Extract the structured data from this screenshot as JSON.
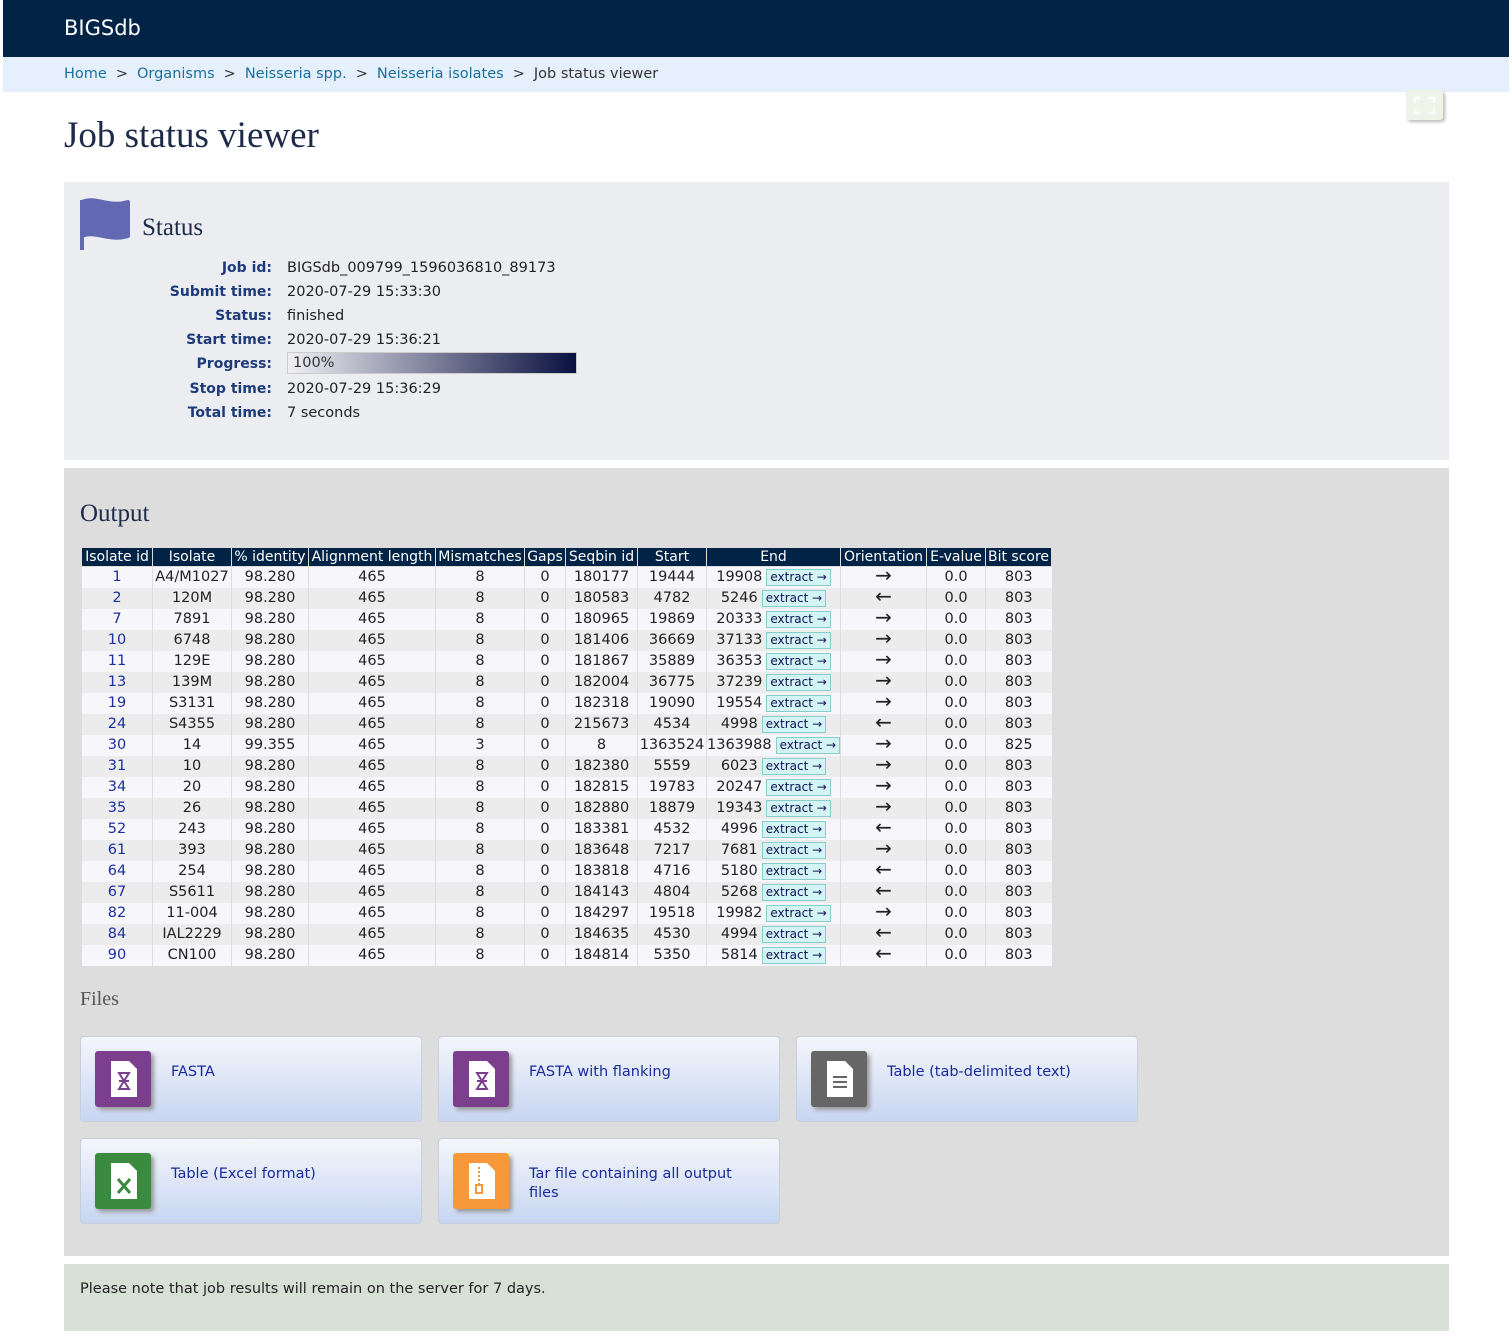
{
  "header": {
    "brand": "BIGSdb"
  },
  "breadcrumb": {
    "separator": ">",
    "items": [
      "Home",
      "Organisms",
      "Neisseria spp.",
      "Neisseria isolates",
      "Job status viewer"
    ]
  },
  "title": "Job status viewer",
  "status": {
    "heading": "Status",
    "fields": [
      {
        "label": "Job id:",
        "value": "BIGSdb_009799_1596036810_89173"
      },
      {
        "label": "Submit time:",
        "value": "2020-07-29 15:33:30"
      },
      {
        "label": "Status:",
        "value": "finished"
      },
      {
        "label": "Start time:",
        "value": "2020-07-29 15:36:21"
      }
    ],
    "progress": {
      "label": "Progress:",
      "value": 100,
      "value_label": "100%"
    },
    "fields_after": [
      {
        "label": "Stop time:",
        "value": "2020-07-29 15:36:29"
      },
      {
        "label": "Total time:",
        "value": "7 seconds"
      }
    ]
  },
  "output": {
    "heading": "Output",
    "table": {
      "columns": [
        "Isolate id",
        "Isolate",
        "% identity",
        "Alignment length",
        "Mismatches",
        "Gaps",
        "Seqbin id",
        "Start",
        "End",
        "Orientation",
        "E-value",
        "Bit score"
      ],
      "extract_label": "extract →",
      "rows": [
        [
          "1",
          "A4/M1027",
          "98.280",
          "465",
          "8",
          "0",
          "180177",
          "19444",
          "19908",
          "→",
          "0.0",
          "803"
        ],
        [
          "2",
          "120M",
          "98.280",
          "465",
          "8",
          "0",
          "180583",
          "4782",
          "5246",
          "←",
          "0.0",
          "803"
        ],
        [
          "7",
          "7891",
          "98.280",
          "465",
          "8",
          "0",
          "180965",
          "19869",
          "20333",
          "→",
          "0.0",
          "803"
        ],
        [
          "10",
          "6748",
          "98.280",
          "465",
          "8",
          "0",
          "181406",
          "36669",
          "37133",
          "→",
          "0.0",
          "803"
        ],
        [
          "11",
          "129E",
          "98.280",
          "465",
          "8",
          "0",
          "181867",
          "35889",
          "36353",
          "→",
          "0.0",
          "803"
        ],
        [
          "13",
          "139M",
          "98.280",
          "465",
          "8",
          "0",
          "182004",
          "36775",
          "37239",
          "→",
          "0.0",
          "803"
        ],
        [
          "19",
          "S3131",
          "98.280",
          "465",
          "8",
          "0",
          "182318",
          "19090",
          "19554",
          "→",
          "0.0",
          "803"
        ],
        [
          "24",
          "S4355",
          "98.280",
          "465",
          "8",
          "0",
          "215673",
          "4534",
          "4998",
          "←",
          "0.0",
          "803"
        ],
        [
          "30",
          "14",
          "99.355",
          "465",
          "3",
          "0",
          "8",
          "1363524",
          "1363988",
          "→",
          "0.0",
          "825"
        ],
        [
          "31",
          "10",
          "98.280",
          "465",
          "8",
          "0",
          "182380",
          "5559",
          "6023",
          "→",
          "0.0",
          "803"
        ],
        [
          "34",
          "20",
          "98.280",
          "465",
          "8",
          "0",
          "182815",
          "19783",
          "20247",
          "→",
          "0.0",
          "803"
        ],
        [
          "35",
          "26",
          "98.280",
          "465",
          "8",
          "0",
          "182880",
          "18879",
          "19343",
          "→",
          "0.0",
          "803"
        ],
        [
          "52",
          "243",
          "98.280",
          "465",
          "8",
          "0",
          "183381",
          "4532",
          "4996",
          "←",
          "0.0",
          "803"
        ],
        [
          "61",
          "393",
          "98.280",
          "465",
          "8",
          "0",
          "183648",
          "7217",
          "7681",
          "→",
          "0.0",
          "803"
        ],
        [
          "64",
          "254",
          "98.280",
          "465",
          "8",
          "0",
          "183818",
          "4716",
          "5180",
          "←",
          "0.0",
          "803"
        ],
        [
          "67",
          "S5611",
          "98.280",
          "465",
          "8",
          "0",
          "184143",
          "4804",
          "5268",
          "←",
          "0.0",
          "803"
        ],
        [
          "82",
          "11-004",
          "98.280",
          "465",
          "8",
          "0",
          "184297",
          "19518",
          "19982",
          "→",
          "0.0",
          "803"
        ],
        [
          "84",
          "IAL2229",
          "98.280",
          "465",
          "8",
          "0",
          "184635",
          "4530",
          "4994",
          "←",
          "0.0",
          "803"
        ],
        [
          "90",
          "CN100",
          "98.280",
          "465",
          "8",
          "0",
          "184814",
          "5350",
          "5814",
          "←",
          "0.0",
          "803"
        ]
      ]
    },
    "files_heading": "Files",
    "files": [
      {
        "label": "FASTA",
        "icon": "fasta"
      },
      {
        "label": "FASTA with flanking",
        "icon": "fasta"
      },
      {
        "label": "Table (tab-delimited text)",
        "icon": "text"
      },
      {
        "label": "Table (Excel format)",
        "icon": "excel"
      },
      {
        "label": "Tar file containing all output files",
        "icon": "tar"
      }
    ]
  },
  "note": "Please note that job results will remain on the server for 7 days."
}
